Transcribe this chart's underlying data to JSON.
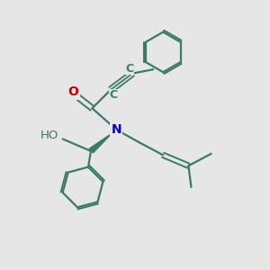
{
  "bg_color": "#e6e6e6",
  "bond_color": "#3a7a6a",
  "n_color": "#0000cc",
  "o_color": "#cc0000",
  "h_color": "#606060",
  "line_width": 1.6,
  "font_size": 9.5,
  "figsize": [
    3.0,
    3.0
  ],
  "dpi": 100,
  "xlim": [
    0,
    10
  ],
  "ylim": [
    0,
    10
  ]
}
